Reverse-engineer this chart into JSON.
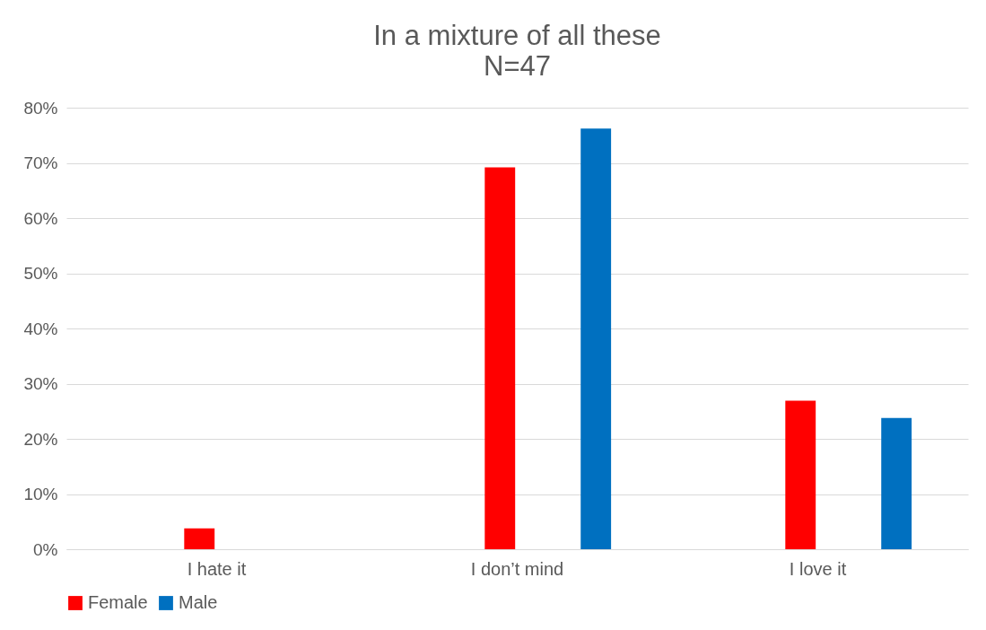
{
  "chart_data": {
    "type": "bar",
    "title": "In a mixture of all these",
    "subtitle": "N=47",
    "categories": [
      "I hate it",
      "I don’t mind",
      "I love it"
    ],
    "series": [
      {
        "name": "Female",
        "color": "#ff0000",
        "values": [
          3.8,
          69.2,
          26.9
        ]
      },
      {
        "name": "Male",
        "color": "#0070c0",
        "values": [
          0,
          76.2,
          23.8
        ]
      }
    ],
    "ylim": [
      0,
      80
    ],
    "yticks": [
      {
        "value": 0,
        "label": "0%"
      },
      {
        "value": 10,
        "label": "10%"
      },
      {
        "value": 20,
        "label": "20%"
      },
      {
        "value": 30,
        "label": "30%"
      },
      {
        "value": 40,
        "label": "40%"
      },
      {
        "value": 50,
        "label": "50%"
      },
      {
        "value": 60,
        "label": "60%"
      },
      {
        "value": 70,
        "label": "70%"
      },
      {
        "value": 80,
        "label": "80%"
      }
    ],
    "grid": "y",
    "legend": "bottom"
  }
}
